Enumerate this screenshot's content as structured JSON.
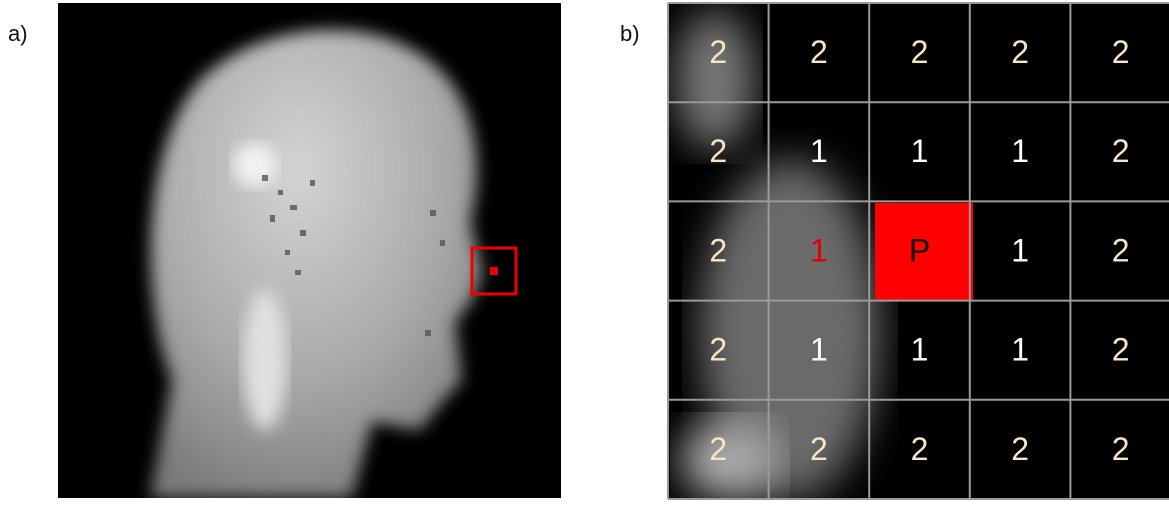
{
  "panels": [
    {
      "label": "a)"
    },
    {
      "label": "b)",
      "grid": [
        [
          2,
          2,
          2,
          2,
          2
        ],
        [
          2,
          1,
          1,
          1,
          2
        ],
        [
          2,
          1,
          "P",
          1,
          2
        ],
        [
          2,
          1,
          1,
          1,
          2
        ],
        [
          2,
          2,
          2,
          2,
          2
        ]
      ]
    }
  ]
}
